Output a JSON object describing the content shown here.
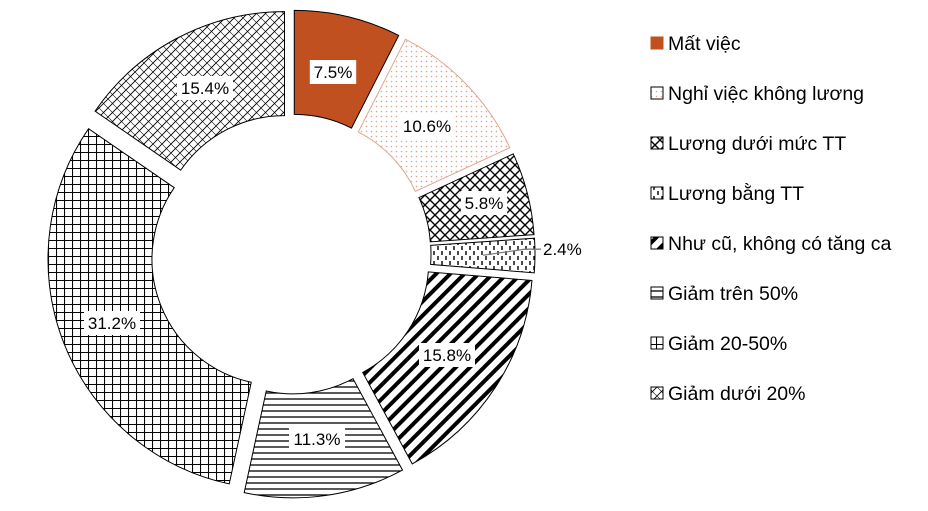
{
  "chart_data": {
    "type": "pie",
    "style": "exploded doughnut",
    "legend_position": "right",
    "title": "",
    "series": [
      {
        "name": "Mất việc",
        "value": 7.5,
        "label": "7.5%",
        "pattern": "solid"
      },
      {
        "name": "Nghỉ việc không lương",
        "value": 10.6,
        "label": "10.6%",
        "pattern": "dots"
      },
      {
        "name": "Lương dưới mức TT",
        "value": 5.8,
        "label": "5.8%",
        "pattern": "diamond"
      },
      {
        "name": "Lương bằng  TT",
        "value": 2.4,
        "label": "2.4%",
        "pattern": "vertical-dashes"
      },
      {
        "name": "Như cũ, không có tăng ca",
        "value": 15.8,
        "label": "15.8%",
        "pattern": "wide-diagonal"
      },
      {
        "name": "Giảm trên 50%",
        "value": 11.3,
        "label": "11.3%",
        "pattern": "horizontal"
      },
      {
        "name": "Giảm 20-50%",
        "value": 31.2,
        "label": "31.2%",
        "pattern": "grid"
      },
      {
        "name": "Giảm dưới 20%",
        "value": 15.4,
        "label": "15.4%",
        "pattern": "trellis"
      }
    ],
    "colors": {
      "solid_fill": "#C0501F",
      "dots": "#E0A592",
      "stroke": "#000000",
      "leader": "#7F7F7F"
    }
  }
}
